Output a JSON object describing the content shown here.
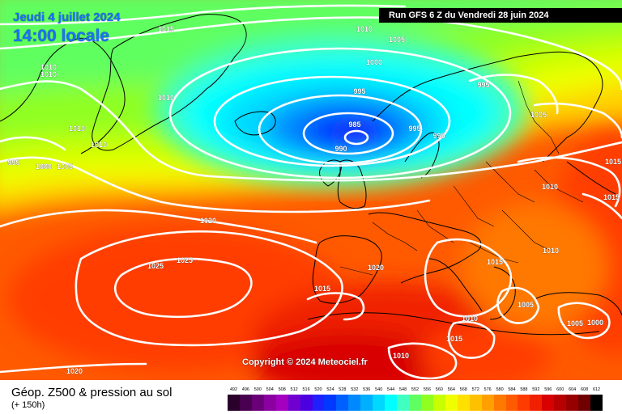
{
  "header": {
    "date": "Jeudi 4 juillet 2024",
    "time": "14:00 locale",
    "run": "Run GFS 6 Z du Vendredi 28 juin 2024",
    "copyright": "Copyright © 2024 Meteociel.fr"
  },
  "footer": {
    "title": "Géop. Z500 & pression au sol",
    "lead": "(+ 150h)"
  },
  "legend": {
    "values": [
      "492",
      "496",
      "500",
      "504",
      "508",
      "512",
      "516",
      "520",
      "524",
      "528",
      "532",
      "536",
      "540",
      "544",
      "548",
      "552",
      "556",
      "560",
      "564",
      "568",
      "572",
      "576",
      "580",
      "584",
      "588",
      "592",
      "596",
      "600",
      "604",
      "608",
      "612"
    ],
    "colors": [
      "#2b002b",
      "#4a0050",
      "#6a0078",
      "#8a00a0",
      "#a300c0",
      "#7000d0",
      "#4a00e0",
      "#2020ff",
      "#0038ff",
      "#0060ff",
      "#0088ff",
      "#00b0ff",
      "#00d8ff",
      "#00ffff",
      "#40ffc0",
      "#60ff60",
      "#90ff20",
      "#c8ff00",
      "#f0ff00",
      "#ffe000",
      "#ffc000",
      "#ffa000",
      "#ff7800",
      "#ff5a00",
      "#ff3c00",
      "#f02000",
      "#d80000",
      "#b80000",
      "#980000",
      "#700000",
      "#000000"
    ]
  },
  "map": {
    "field": "Z500 geopotential (dam) shaded, mean sea level pressure (hPa) contours",
    "colors": {
      "coast": "#000000",
      "isobar": "#ffffff"
    },
    "pressure_labels": [
      {
        "text": "1015",
        "near": "north Atlantic top"
      },
      {
        "text": "1010",
        "near": "north top"
      },
      {
        "text": "1005",
        "near": "Norwegian Sea top"
      },
      {
        "text": "1000",
        "near": "north of Iceland"
      },
      {
        "text": "1010",
        "near": "Greenland west"
      },
      {
        "text": "1010",
        "near": "Greenland west"
      },
      {
        "text": "1010",
        "near": "Greenland south"
      },
      {
        "text": "1010",
        "near": "Labrador"
      },
      {
        "text": "1010",
        "near": "Davis strait"
      },
      {
        "text": "995",
        "near": "Canada"
      },
      {
        "text": "1000",
        "near": "Canada"
      },
      {
        "text": "1005",
        "near": "Canada"
      },
      {
        "text": "995",
        "near": "north of low"
      },
      {
        "text": "985",
        "near": "low centre"
      },
      {
        "text": "990",
        "near": "low south"
      },
      {
        "text": "995",
        "near": "Norway"
      },
      {
        "text": "995",
        "near": "Norway south"
      },
      {
        "text": "995",
        "near": "Scandinavia north"
      },
      {
        "text": "1005",
        "near": "Finland"
      },
      {
        "text": "1015",
        "near": "Russia"
      },
      {
        "text": "1010",
        "near": "Poland"
      },
      {
        "text": "1015",
        "near": "Ukraine"
      },
      {
        "text": "1020",
        "near": "mid Atlantic"
      },
      {
        "text": "1025",
        "near": "Azores high"
      },
      {
        "text": "1025",
        "near": "Azores high"
      },
      {
        "text": "1020",
        "near": "Bay of Biscay"
      },
      {
        "text": "1015",
        "near": "Iberia"
      },
      {
        "text": "1015",
        "near": "Italy"
      },
      {
        "text": "1010",
        "near": "Balkans"
      },
      {
        "text": "1005",
        "near": "Greece"
      },
      {
        "text": "1010",
        "near": "Tunisia"
      },
      {
        "text": "1015",
        "near": "Libya"
      },
      {
        "text": "1010",
        "near": "Sahara"
      },
      {
        "text": "1005",
        "near": "Turkey"
      },
      {
        "text": "1000",
        "near": "Turkey"
      },
      {
        "text": "1020",
        "near": "south-west corner"
      }
    ]
  }
}
